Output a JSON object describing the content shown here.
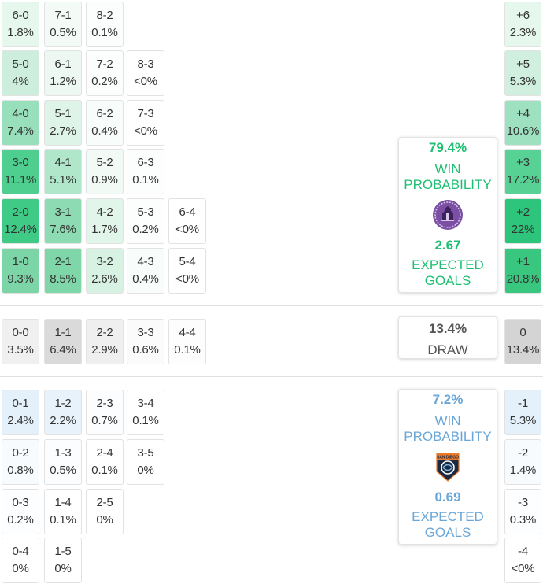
{
  "home_scores": [
    {
      "score": "6-0",
      "pct": "1.8%"
    },
    {
      "score": "7-1",
      "pct": "0.5%"
    },
    {
      "score": "8-2",
      "pct": "0.1%"
    },
    {
      "score": "5-0",
      "pct": "4%"
    },
    {
      "score": "6-1",
      "pct": "1.2%"
    },
    {
      "score": "7-2",
      "pct": "0.2%"
    },
    {
      "score": "8-3",
      "pct": "<0%"
    },
    {
      "score": "4-0",
      "pct": "7.4%"
    },
    {
      "score": "5-1",
      "pct": "2.7%"
    },
    {
      "score": "6-2",
      "pct": "0.4%"
    },
    {
      "score": "7-3",
      "pct": "<0%"
    },
    {
      "score": "3-0",
      "pct": "11.1%"
    },
    {
      "score": "4-1",
      "pct": "5.1%"
    },
    {
      "score": "5-2",
      "pct": "0.9%"
    },
    {
      "score": "6-3",
      "pct": "0.1%"
    },
    {
      "score": "2-0",
      "pct": "12.4%"
    },
    {
      "score": "3-1",
      "pct": "7.6%"
    },
    {
      "score": "4-2",
      "pct": "1.7%"
    },
    {
      "score": "5-3",
      "pct": "0.2%"
    },
    {
      "score": "6-4",
      "pct": "<0%"
    },
    {
      "score": "1-0",
      "pct": "9.3%"
    },
    {
      "score": "2-1",
      "pct": "8.5%"
    },
    {
      "score": "3-2",
      "pct": "2.6%"
    },
    {
      "score": "4-3",
      "pct": "0.4%"
    },
    {
      "score": "5-4",
      "pct": "<0%"
    }
  ],
  "draw_scores": [
    {
      "score": "0-0",
      "pct": "3.5%"
    },
    {
      "score": "1-1",
      "pct": "6.4%"
    },
    {
      "score": "2-2",
      "pct": "2.9%"
    },
    {
      "score": "3-3",
      "pct": "0.6%"
    },
    {
      "score": "4-4",
      "pct": "0.1%"
    }
  ],
  "away_scores": [
    {
      "score": "0-1",
      "pct": "2.4%"
    },
    {
      "score": "1-2",
      "pct": "2.2%"
    },
    {
      "score": "2-3",
      "pct": "0.7%"
    },
    {
      "score": "3-4",
      "pct": "0.1%"
    },
    {
      "score": "0-2",
      "pct": "0.8%"
    },
    {
      "score": "1-3",
      "pct": "0.5%"
    },
    {
      "score": "2-4",
      "pct": "0.1%"
    },
    {
      "score": "3-5",
      "pct": "0%"
    },
    {
      "score": "0-3",
      "pct": "0.2%"
    },
    {
      "score": "1-4",
      "pct": "0.1%"
    },
    {
      "score": "2-5",
      "pct": "0%"
    },
    {
      "score": "0-4",
      "pct": "0%"
    },
    {
      "score": "1-5",
      "pct": "0%"
    }
  ],
  "margins": [
    {
      "label": "+6",
      "pct": "2.3%"
    },
    {
      "label": "+5",
      "pct": "5.3%"
    },
    {
      "label": "+4",
      "pct": "10.6%"
    },
    {
      "label": "+3",
      "pct": "17.2%"
    },
    {
      "label": "+2",
      "pct": "22%"
    },
    {
      "label": "+1",
      "pct": "20.8%"
    },
    {
      "label": "0",
      "pct": "13.4%"
    },
    {
      "label": "-1",
      "pct": "5.3%"
    },
    {
      "label": "-2",
      "pct": "1.4%"
    },
    {
      "label": "-3",
      "pct": "0.3%"
    },
    {
      "label": "-4",
      "pct": "<0%"
    }
  ],
  "home_card": {
    "win_pct": "79.4%",
    "win_label_1": "WIN",
    "win_label_2": "PROBABILITY",
    "xg": "2.67",
    "xg_label_1": "EXPECTED",
    "xg_label_2": "GOALS",
    "logo": "home-team-crest-purple"
  },
  "draw_card": {
    "pct": "13.4%",
    "label": "DRAW"
  },
  "away_card": {
    "win_pct": "7.2%",
    "win_label_1": "WIN",
    "win_label_2": "PROBABILITY",
    "xg": "0.69",
    "xg_label_1": "EXPECTED",
    "xg_label_2": "GOALS",
    "logo": "san-diego-wave-crest",
    "logo_text": "SAN DIEGO"
  },
  "colors": {
    "home_accent": "#1fbf73",
    "away_accent": "#6aa7d8",
    "draw_accent": "#555555"
  }
}
